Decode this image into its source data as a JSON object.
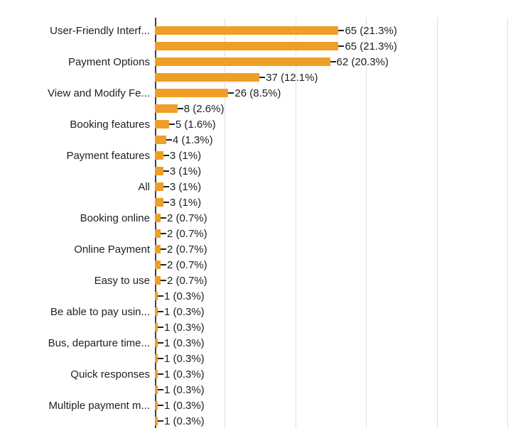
{
  "chart_data": {
    "type": "bar",
    "orientation": "horizontal",
    "title": "",
    "xlabel": "",
    "ylabel": "",
    "axis_max": 125,
    "gridline_interval": 25,
    "grid": true,
    "legend": "none",
    "bar_color": "#EF9E27",
    "axis_color": "#424242",
    "gridline_color": "#e0e0e0",
    "text_color": "#212121",
    "bars": [
      {
        "label": "User-Friendly Interf...",
        "value": 65,
        "value_label": "65 (21.3%)"
      },
      {
        "label": "",
        "value": 65,
        "value_label": "65 (21.3%)"
      },
      {
        "label": "Payment Options",
        "value": 62,
        "value_label": "62 (20.3%)"
      },
      {
        "label": "",
        "value": 37,
        "value_label": "37 (12.1%)"
      },
      {
        "label": "View and Modify Fe...",
        "value": 26,
        "value_label": "26 (8.5%)"
      },
      {
        "label": "",
        "value": 8,
        "value_label": "8 (2.6%)"
      },
      {
        "label": "Booking features",
        "value": 5,
        "value_label": "5 (1.6%)"
      },
      {
        "label": "",
        "value": 4,
        "value_label": "4 (1.3%)"
      },
      {
        "label": "Payment features",
        "value": 3,
        "value_label": "3 (1%)"
      },
      {
        "label": "",
        "value": 3,
        "value_label": "3 (1%)"
      },
      {
        "label": "All",
        "value": 3,
        "value_label": "3 (1%)"
      },
      {
        "label": "",
        "value": 3,
        "value_label": "3 (1%)"
      },
      {
        "label": "Booking online",
        "value": 2,
        "value_label": "2 (0.7%)"
      },
      {
        "label": "",
        "value": 2,
        "value_label": "2 (0.7%)"
      },
      {
        "label": "Online Payment",
        "value": 2,
        "value_label": "2 (0.7%)"
      },
      {
        "label": "",
        "value": 2,
        "value_label": "2 (0.7%)"
      },
      {
        "label": "Easy to use",
        "value": 2,
        "value_label": "2 (0.7%)"
      },
      {
        "label": "",
        "value": 1,
        "value_label": "1 (0.3%)"
      },
      {
        "label": "Be able to pay usin...",
        "value": 1,
        "value_label": "1 (0.3%)"
      },
      {
        "label": "",
        "value": 1,
        "value_label": "1 (0.3%)"
      },
      {
        "label": "Bus, departure time...",
        "value": 1,
        "value_label": "1 (0.3%)"
      },
      {
        "label": "",
        "value": 1,
        "value_label": "1 (0.3%)"
      },
      {
        "label": "Quick responses",
        "value": 1,
        "value_label": "1 (0.3%)"
      },
      {
        "label": "",
        "value": 1,
        "value_label": "1 (0.3%)"
      },
      {
        "label": "Multiple payment m...",
        "value": 1,
        "value_label": "1 (0.3%)"
      },
      {
        "label": "",
        "value": 1,
        "value_label": "1 (0.3%)"
      }
    ]
  }
}
